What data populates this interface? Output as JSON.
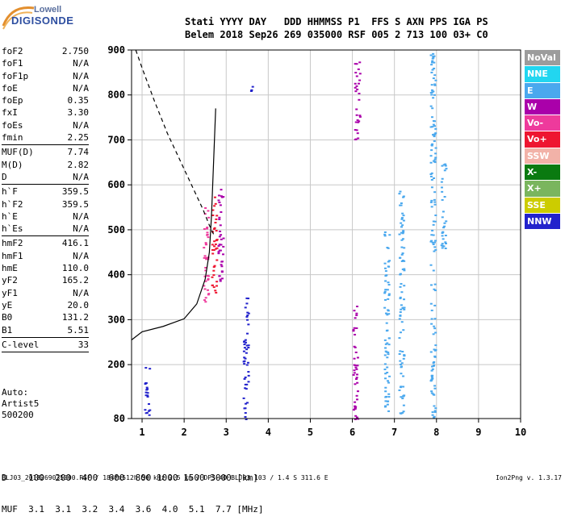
{
  "logo": {
    "line1": "Lowell",
    "line2": "DIGISONDE"
  },
  "header": {
    "labels": "Stati YYYY DAY   DDD HHMMSS P1  FFS S AXN PPS IGA PS",
    "values": "Belem 2018 Sep26 269 035000 RSF 005 2 713 100 03+ C0"
  },
  "params_group1": [
    {
      "name": "foF2",
      "value": "2.750"
    },
    {
      "name": "foF1",
      "value": "N/A"
    },
    {
      "name": "foF1p",
      "value": "N/A"
    },
    {
      "name": "foE",
      "value": "N/A"
    },
    {
      "name": "foEp",
      "value": "0.35"
    },
    {
      "name": "fxI",
      "value": "3.30"
    },
    {
      "name": "foEs",
      "value": "N/A"
    },
    {
      "name": "fmin",
      "value": "2.25"
    }
  ],
  "params_group2": [
    {
      "name": "MUF(D)",
      "value": "7.74"
    },
    {
      "name": "M(D)",
      "value": "2.82"
    },
    {
      "name": "D",
      "value": "N/A"
    }
  ],
  "params_group3": [
    {
      "name": "h`F",
      "value": "359.5"
    },
    {
      "name": "h`F2",
      "value": "359.5"
    },
    {
      "name": "h`E",
      "value": "N/A"
    },
    {
      "name": "h`Es",
      "value": "N/A"
    }
  ],
  "params_group4": [
    {
      "name": "hmF2",
      "value": "416.1"
    },
    {
      "name": "hmF1",
      "value": "N/A"
    },
    {
      "name": "hmE",
      "value": "110.0"
    },
    {
      "name": "yF2",
      "value": "165.2"
    },
    {
      "name": "yF1",
      "value": "N/A"
    },
    {
      "name": "yE",
      "value": "20.0"
    },
    {
      "name": "B0",
      "value": "131.2"
    },
    {
      "name": "B1",
      "value": "5.51"
    }
  ],
  "params_group5": [
    {
      "name": "C-level",
      "value": "33"
    }
  ],
  "auto": {
    "line1": "Auto:",
    "line2": "Artist5",
    "line3": "500200"
  },
  "legend": [
    {
      "label": "NoVal",
      "color": "#9c9c9c"
    },
    {
      "label": "NNE",
      "color": "#22d6f0"
    },
    {
      "label": "E",
      "color": "#4aa8ee"
    },
    {
      "label": "W",
      "color": "#aa00aa"
    },
    {
      "label": "Vo-",
      "color": "#ee3a9c"
    },
    {
      "label": "Vo+",
      "color": "#ee1530"
    },
    {
      "label": "SSW",
      "color": "#f2b2a8"
    },
    {
      "label": "X-",
      "color": "#0a7a10"
    },
    {
      "label": "X+",
      "color": "#7ab55e"
    },
    {
      "label": "SSE",
      "color": "#cccc00"
    },
    {
      "label": "NNW",
      "color": "#2222cc"
    }
  ],
  "distance_table": {
    "row1": "D    100  200  400  600  800 1000 1500 3000 [km]",
    "row2": "MUF  3.1  3.1  3.2  3.4  3.6  4.0  5.1  7.7 [MHz]"
  },
  "footer": {
    "left": "BLJ03_2018269035000.RSF / 184fx512h 50 kHz 2.5 km / DPS-4D BLJ03 103 / 1.4 S 311.6 E",
    "right": "Ion2Png v. 1.3.17"
  },
  "chart_data": {
    "type": "scatter",
    "title": "",
    "xlabel": "",
    "ylabel": "",
    "xlim": [
      0.75,
      10
    ],
    "ylim": [
      80,
      900
    ],
    "xticks": [
      1,
      2,
      3,
      4,
      5,
      6,
      7,
      8,
      9,
      10
    ],
    "yticks": [
      80,
      200,
      300,
      400,
      500,
      600,
      700,
      800,
      900
    ],
    "grid": true,
    "ordinary_trace_curve": {
      "x": [
        0.75,
        1.0,
        1.5,
        2.0,
        2.3,
        2.5,
        2.6,
        2.65,
        2.7,
        2.75
      ],
      "y": [
        255,
        273,
        285,
        302,
        335,
        390,
        450,
        530,
        650,
        770
      ]
    },
    "dashed_curve": {
      "x": [
        0.85,
        1.0,
        1.3,
        1.6,
        1.9,
        2.2,
        2.45,
        2.6,
        2.7
      ],
      "y": [
        900,
        860,
        785,
        715,
        655,
        595,
        545,
        510,
        490
      ]
    },
    "echo_clusters": [
      {
        "x": 1.1,
        "y1": 80,
        "y2": 200,
        "legend": "NNW"
      },
      {
        "x": 2.5,
        "y1": 340,
        "y2": 560,
        "legend": "Vo-"
      },
      {
        "x": 2.7,
        "y1": 360,
        "y2": 580,
        "legend": "Vo+"
      },
      {
        "x": 2.85,
        "y1": 380,
        "y2": 600,
        "legend": "W"
      },
      {
        "x": 3.45,
        "y1": 80,
        "y2": 360,
        "legend": "NNW"
      },
      {
        "x": 3.6,
        "y1": 810,
        "y2": 830,
        "legend": "NNW"
      },
      {
        "x": 6.05,
        "y1": 80,
        "y2": 340,
        "legend": "W"
      },
      {
        "x": 6.1,
        "y1": 700,
        "y2": 880,
        "legend": "W"
      },
      {
        "x": 6.8,
        "y1": 80,
        "y2": 500,
        "legend": "E"
      },
      {
        "x": 7.15,
        "y1": 80,
        "y2": 600,
        "legend": "E"
      },
      {
        "x": 7.9,
        "y1": 80,
        "y2": 900,
        "legend": "E"
      },
      {
        "x": 8.15,
        "y1": 460,
        "y2": 650,
        "legend": "E"
      }
    ]
  }
}
